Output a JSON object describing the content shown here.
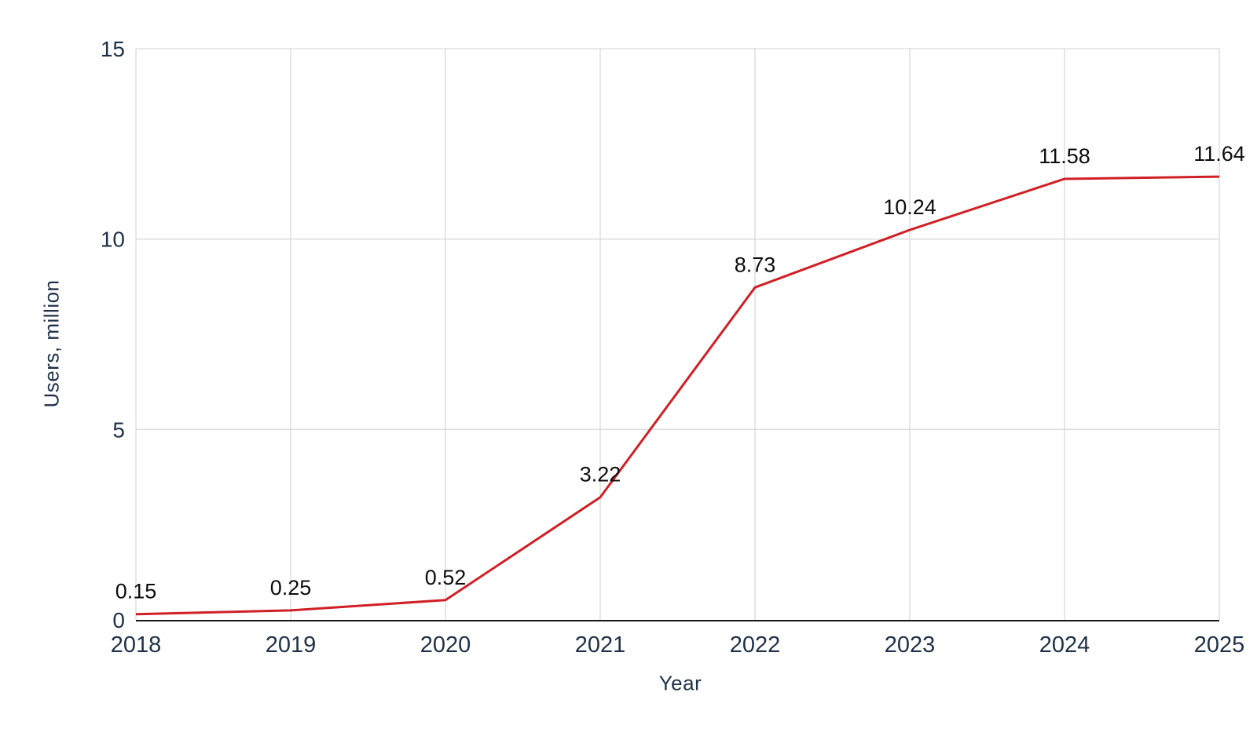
{
  "chart_data": {
    "type": "line",
    "title": "",
    "x": [
      "2018",
      "2019",
      "2020",
      "2021",
      "2022",
      "2023",
      "2024",
      "2025"
    ],
    "series": [
      {
        "name": "Users",
        "values": [
          0.15,
          0.25,
          0.52,
          3.22,
          8.73,
          10.24,
          11.58,
          11.64
        ]
      }
    ],
    "point_labels": [
      "0.15",
      "0.25",
      "0.52",
      "3.22",
      "8.73",
      "10.24",
      "11.58",
      "11.64"
    ],
    "xlabel": "Year",
    "ylabel": "Users, million",
    "ylim": [
      0,
      15
    ],
    "yticks": [
      0,
      5,
      10,
      15
    ],
    "grid": true,
    "legend_position": "none",
    "colors": {
      "line": "#d02026",
      "tick_text": "#1f3147",
      "point_label_text": "#0d0d0d",
      "gridline": "#d9d9d9",
      "axis_line": "#161616",
      "background": "#ffffff"
    }
  }
}
